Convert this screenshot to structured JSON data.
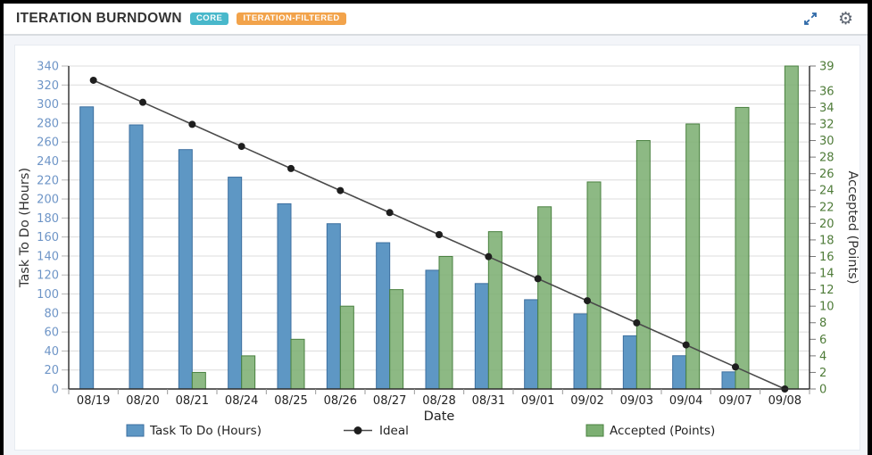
{
  "header": {
    "title": "ITERATION BURNDOWN",
    "badges": [
      {
        "label": "CORE",
        "color": "#49B8CB"
      },
      {
        "label": "ITERATION-FILTERED",
        "color": "#F2A34B"
      }
    ],
    "actions": [
      {
        "icon": "expand-icon"
      },
      {
        "icon": "gear-icon"
      }
    ]
  },
  "chart_data": {
    "type": "bar",
    "title": "Iteration Burndown",
    "categories": [
      "08/19",
      "08/20",
      "08/21",
      "08/24",
      "08/25",
      "08/26",
      "08/27",
      "08/28",
      "08/31",
      "09/01",
      "09/02",
      "09/03",
      "09/04",
      "09/07",
      "09/08"
    ],
    "xlabel": "Date",
    "grid": true,
    "legend_position": "bottom",
    "left_axis": {
      "title": "Task To Do (Hours)",
      "min": 0,
      "max": 340,
      "tick_step": 20
    },
    "right_axis": {
      "title": "Accepted (Points)",
      "min": 0,
      "max": 39,
      "ticks": [
        0,
        2,
        4,
        6,
        8,
        10,
        12,
        14,
        16,
        18,
        20,
        22,
        24,
        26,
        28,
        30,
        32,
        34,
        36,
        39
      ]
    },
    "series": [
      {
        "name": "Task To Do (Hours)",
        "type": "bar",
        "axis": "left",
        "color": "#5E97C4",
        "border_color": "#3C6F9F",
        "values": [
          297,
          278,
          252,
          223,
          195,
          174,
          154,
          125,
          111,
          94,
          79,
          56,
          35,
          18,
          0
        ]
      },
      {
        "name": "Ideal",
        "type": "line",
        "axis": "left",
        "color": "#4A4A4A",
        "marker_color": "#1E1E1E",
        "values": [
          325,
          301.8,
          278.6,
          255.4,
          232.1,
          208.9,
          185.7,
          162.5,
          139.3,
          116.1,
          92.9,
          69.6,
          46.4,
          23.2,
          0
        ]
      },
      {
        "name": "Accepted (Points)",
        "type": "bar",
        "axis": "right",
        "color": "#7CAF72",
        "border_color": "#49803F",
        "values": [
          0,
          0,
          2,
          4,
          6,
          10,
          12,
          16,
          19,
          22,
          25,
          30,
          32,
          34,
          39
        ]
      }
    ],
    "styles": {
      "grid_color": "#DCDCDC",
      "axis_color": "#2B2B2B",
      "tick_color": "#B6B6B6",
      "left_label_color": "#6E95C7",
      "right_label_color": "#4E7B38",
      "x_label_color": "#222222",
      "axis_title_color": "#333333"
    }
  }
}
